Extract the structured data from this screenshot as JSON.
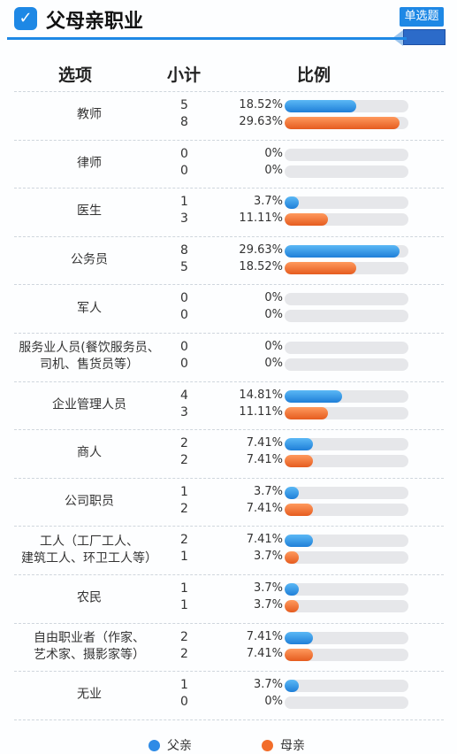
{
  "header": {
    "title": "父母亲职业",
    "badge": "单选题"
  },
  "columns": {
    "option": "选项",
    "subtotal": "小计",
    "ratio": "比例"
  },
  "legend": {
    "father": "父亲",
    "mother": "母亲"
  },
  "colors": {
    "father": "#2e8be6",
    "mother": "#f26d2a",
    "accent": "#1e88e5"
  },
  "chart_data": {
    "type": "bar",
    "series_names": [
      "父亲",
      "母亲"
    ],
    "categories": [
      {
        "label": "教师",
        "father": {
          "count": "5",
          "pct": "18.52%",
          "value": 18.52
        },
        "mother": {
          "count": "8",
          "pct": "29.63%",
          "value": 29.63
        }
      },
      {
        "label": "律师",
        "father": {
          "count": "0",
          "pct": "0%",
          "value": 0
        },
        "mother": {
          "count": "0",
          "pct": "0%",
          "value": 0
        }
      },
      {
        "label": "医生",
        "father": {
          "count": "1",
          "pct": "3.7%",
          "value": 3.7
        },
        "mother": {
          "count": "3",
          "pct": "11.11%",
          "value": 11.11
        }
      },
      {
        "label": "公务员",
        "father": {
          "count": "8",
          "pct": "29.63%",
          "value": 29.63
        },
        "mother": {
          "count": "5",
          "pct": "18.52%",
          "value": 18.52
        }
      },
      {
        "label": "军人",
        "father": {
          "count": "0",
          "pct": "0%",
          "value": 0
        },
        "mother": {
          "count": "0",
          "pct": "0%",
          "value": 0
        }
      },
      {
        "label": "服务业人员(餐饮服务员、\n司机、售货员等）",
        "father": {
          "count": "0",
          "pct": "0%",
          "value": 0
        },
        "mother": {
          "count": "0",
          "pct": "0%",
          "value": 0
        }
      },
      {
        "label": "企业管理人员",
        "father": {
          "count": "4",
          "pct": "14.81%",
          "value": 14.81
        },
        "mother": {
          "count": "3",
          "pct": "11.11%",
          "value": 11.11
        }
      },
      {
        "label": "商人",
        "father": {
          "count": "2",
          "pct": "7.41%",
          "value": 7.41
        },
        "mother": {
          "count": "2",
          "pct": "7.41%",
          "value": 7.41
        }
      },
      {
        "label": "公司职员",
        "father": {
          "count": "1",
          "pct": "3.7%",
          "value": 3.7
        },
        "mother": {
          "count": "2",
          "pct": "7.41%",
          "value": 7.41
        }
      },
      {
        "label": "工人（工厂工人、\n建筑工人、环卫工人等）",
        "father": {
          "count": "2",
          "pct": "7.41%",
          "value": 7.41
        },
        "mother": {
          "count": "1",
          "pct": "3.7%",
          "value": 3.7
        }
      },
      {
        "label": "农民",
        "father": {
          "count": "1",
          "pct": "3.7%",
          "value": 3.7
        },
        "mother": {
          "count": "1",
          "pct": "3.7%",
          "value": 3.7
        }
      },
      {
        "label": "自由职业者（作家、\n艺术家、摄影家等）",
        "father": {
          "count": "2",
          "pct": "7.41%",
          "value": 7.41
        },
        "mother": {
          "count": "2",
          "pct": "7.41%",
          "value": 7.41
        }
      },
      {
        "label": "无业",
        "father": {
          "count": "1",
          "pct": "3.7%",
          "value": 3.7
        },
        "mother": {
          "count": "0",
          "pct": "0%",
          "value": 0
        }
      }
    ]
  }
}
